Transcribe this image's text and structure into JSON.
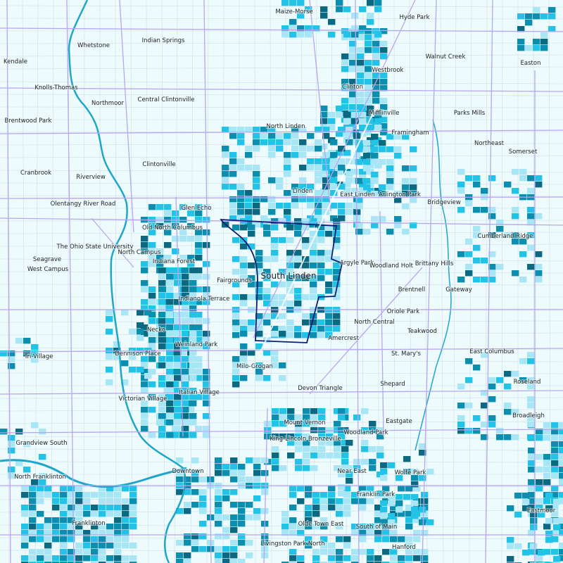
{
  "map": {
    "highlighted_area": "South Linden",
    "neighborhoods": [
      "Maize-Morse",
      "Hyde Park",
      "Whetstone",
      "Indian Springs",
      "Walnut Creek",
      "Kendale",
      "Easton",
      "Westbrook",
      "Knolls-Thomas",
      "Clinton",
      "Central Clintonville",
      "Northmoor",
      "Mifflinville",
      "Parks Mills",
      "Brentwood Park",
      "North Linden",
      "Framingham",
      "Northeast",
      "Somerset",
      "Clintonville",
      "Cranbrook",
      "Riverview",
      "Linden",
      "East Linden",
      "Arlington Park",
      "Olentangy River Road",
      "Bridgeview",
      "Glen Echo",
      "Old North Columbus",
      "Cumberland Ridge",
      "The Ohio State University",
      "North Campus",
      "Seagrave",
      "Indiana Forest",
      "Argyle Park",
      "Woodland Holt",
      "Brittany Hills",
      "West Campus",
      "Fairgrounds",
      "Brentnell",
      "Gateway",
      "Indianola Terrace",
      "Oriole Park",
      "North Central",
      "Teakwood",
      "Necko",
      "Amercrest",
      "Weinland Park",
      "St. Mary's",
      "East Columbus",
      "Dennison Place",
      "Tri-Village",
      "Milo-Grogan",
      "Devon Triangle",
      "Shepard",
      "Roseland",
      "Italian Village",
      "Victorian Village",
      "Broadleigh",
      "Mount Vernon",
      "Woodland Park",
      "Eastgate",
      "Grandview South",
      "King-Lincoln Bronzeville",
      "Near East",
      "Wolfe Park",
      "Downtown",
      "North Franklinton",
      "Franklin Park",
      "Eastmoor",
      "Franklinton",
      "Olde Town East",
      "South of Main",
      "Livingston Park North",
      "Hanford"
    ],
    "colors": {
      "background": "#eefbfd",
      "boundary": "#b9a6f0",
      "street": "#cfdde3",
      "river": "#1fa6c9",
      "highlight_outline": "#0b1f7a",
      "density_low": "#a9e6f5",
      "density_mid": "#22c3e6",
      "density_high": "#0c8fae",
      "density_max": "#0b6a82"
    }
  }
}
